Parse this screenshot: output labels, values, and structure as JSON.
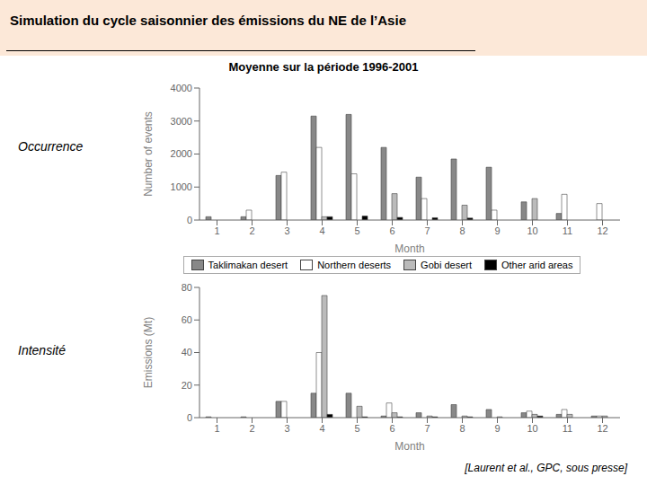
{
  "chart_data": [
    {
      "type": "bar",
      "title": "Simulation du cycle saisonnier des émissions du NE de l’Asie",
      "subtitle": "Moyenne sur la période 1996-2001",
      "annotations": [
        "Occurrence"
      ],
      "xlabel": "Month",
      "ylabel": "Number of events",
      "categories": [
        "1",
        "2",
        "3",
        "4",
        "5",
        "6",
        "7",
        "8",
        "9",
        "10",
        "11",
        "12"
      ],
      "series": [
        {
          "name": "Taklimakan desert",
          "color": "#888888",
          "values": [
            100,
            100,
            1350,
            3150,
            3200,
            2200,
            1300,
            1850,
            1600,
            550,
            200,
            0
          ]
        },
        {
          "name": "Northern deserts",
          "color": "#ffffff",
          "values": [
            0,
            300,
            1450,
            2200,
            1400,
            0,
            650,
            0,
            300,
            0,
            780,
            500
          ]
        },
        {
          "name": "Gobi desert",
          "color": "#bbbbbb",
          "values": [
            0,
            0,
            0,
            100,
            0,
            800,
            0,
            450,
            0,
            650,
            0,
            0
          ]
        },
        {
          "name": "Other arid areas",
          "color": "#000000",
          "values": [
            0,
            0,
            0,
            100,
            120,
            80,
            70,
            60,
            0,
            0,
            0,
            0
          ]
        }
      ],
      "ylim": [
        0,
        4000
      ],
      "yticks": [
        0,
        1000,
        2000,
        3000,
        4000
      ],
      "grid": false,
      "legend": "bottom"
    },
    {
      "type": "bar",
      "annotations": [
        "Intensité",
        "[Laurent et al., GPC, sous presse]"
      ],
      "xlabel": "Month",
      "ylabel": "Emissions (Mt)",
      "categories": [
        "1",
        "2",
        "3",
        "4",
        "5",
        "6",
        "7",
        "8",
        "9",
        "10",
        "11",
        "12"
      ],
      "series": [
        {
          "name": "Taklimakan desert",
          "color": "#888888",
          "values": [
            0.5,
            0.5,
            10,
            15,
            15,
            1,
            3,
            8,
            5,
            3,
            2,
            1
          ]
        },
        {
          "name": "Northern deserts",
          "color": "#ffffff",
          "values": [
            0,
            0,
            10,
            40,
            0,
            9,
            0,
            0,
            0,
            4,
            5,
            1
          ]
        },
        {
          "name": "Gobi desert",
          "color": "#bbbbbb",
          "values": [
            0,
            0,
            0,
            75,
            7,
            3,
            1,
            1,
            0.5,
            2,
            2,
            1
          ]
        },
        {
          "name": "Other arid areas",
          "color": "#000000",
          "values": [
            0,
            0,
            0,
            2,
            0.5,
            0.5,
            0.5,
            0.5,
            0,
            1,
            0,
            0
          ]
        }
      ],
      "ylim": [
        0,
        80
      ],
      "yticks": [
        0,
        20,
        40,
        60,
        80
      ],
      "grid": false
    }
  ]
}
